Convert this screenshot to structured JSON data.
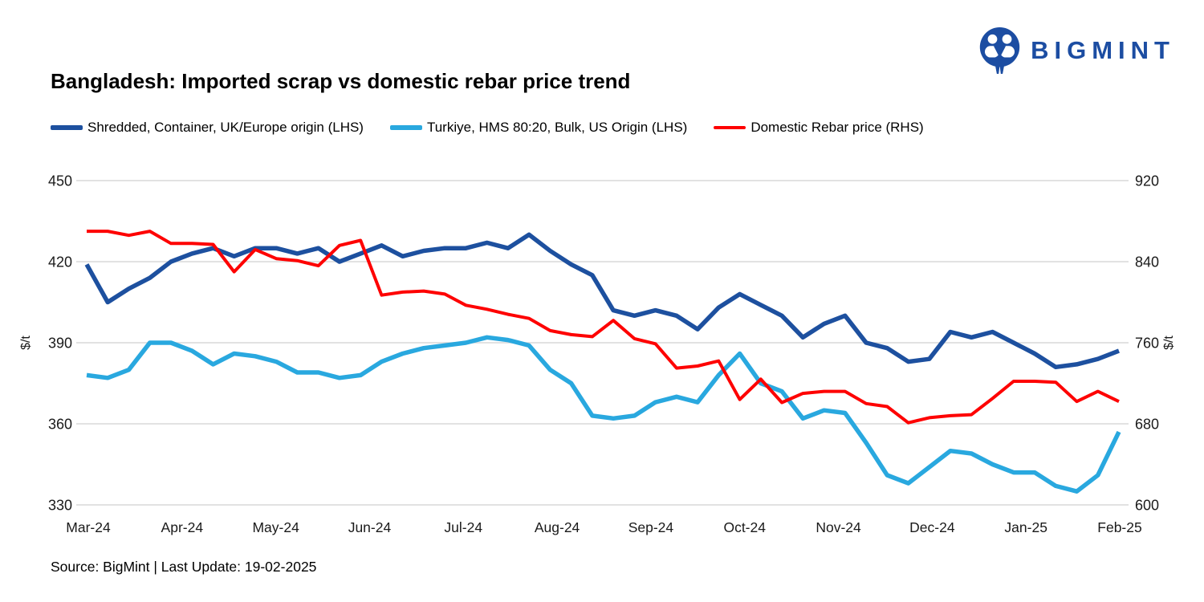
{
  "logo": {
    "text": "BIGMINT",
    "color": "#1c4da2"
  },
  "title": "Bangladesh: Imported scrap vs domestic rebar price trend",
  "source": "Source: BigMint | Last Update: 19-02-2025",
  "axes": {
    "left_title": "$/t",
    "right_title": "$/t",
    "left_ticks": [
      "450",
      "420",
      "390",
      "360",
      "330"
    ],
    "right_ticks": [
      "920",
      "840",
      "760",
      "680",
      "600"
    ],
    "x_labels": [
      "Mar-24",
      "Apr-24",
      "May-24",
      "Jun-24",
      "Jul-24",
      "Aug-24",
      "Sep-24",
      "Oct-24",
      "Nov-24",
      "Dec-24",
      "Jan-25",
      "Feb-25"
    ]
  },
  "chart_data": {
    "type": "line",
    "title": "Bangladesh: Imported scrap vs domestic rebar price trend",
    "x_unit": "weekly points from Mar-24 to Feb-25",
    "categories": [
      "Mar-24",
      "Apr-24",
      "May-24",
      "Jun-24",
      "Jul-24",
      "Aug-24",
      "Sep-24",
      "Oct-24",
      "Nov-24",
      "Dec-24",
      "Jan-25",
      "Feb-25"
    ],
    "grid": true,
    "legend_position": "top",
    "left_axis": {
      "label": "$/t",
      "min": 330,
      "max": 450
    },
    "right_axis": {
      "label": "$/t",
      "min": 600,
      "max": 920
    },
    "series": [
      {
        "name": "Shredded, Container, UK/Europe origin (LHS)",
        "axis": "left",
        "color": "#1d509f",
        "values": [
          419,
          405,
          410,
          414,
          420,
          423,
          425,
          422,
          425,
          425,
          423,
          425,
          420,
          423,
          426,
          422,
          424,
          425,
          425,
          427,
          425,
          430,
          424,
          419,
          415,
          402,
          400,
          402,
          400,
          395,
          403,
          408,
          404,
          400,
          392,
          397,
          400,
          390,
          388,
          383,
          384,
          394,
          392,
          394,
          390,
          386,
          381,
          382,
          384,
          387
        ]
      },
      {
        "name": "Turkiye, HMS 80:20, Bulk, US Origin (LHS)",
        "axis": "left",
        "color": "#29a8df",
        "values": [
          378,
          377,
          380,
          390,
          390,
          387,
          382,
          386,
          385,
          383,
          379,
          379,
          377,
          378,
          383,
          386,
          388,
          389,
          390,
          392,
          391,
          389,
          380,
          375,
          363,
          362,
          363,
          368,
          370,
          368,
          378,
          386,
          375,
          372,
          362,
          365,
          364,
          353,
          341,
          338,
          344,
          350,
          349,
          345,
          342,
          342,
          337,
          335,
          341,
          357
        ]
      },
      {
        "name": "Domestic Rebar price (RHS)",
        "axis": "right",
        "color": "#fe0000",
        "values": [
          870,
          870,
          866,
          870,
          858,
          858,
          857,
          830,
          852,
          843,
          841,
          836,
          856,
          861,
          807,
          810,
          811,
          808,
          797,
          793,
          788,
          784,
          772,
          768,
          766,
          782,
          764,
          759,
          735,
          737,
          742,
          704,
          724,
          701,
          710,
          712,
          712,
          700,
          697,
          681,
          686,
          688,
          689,
          705,
          722,
          722,
          721,
          702,
          712,
          702
        ]
      }
    ]
  }
}
